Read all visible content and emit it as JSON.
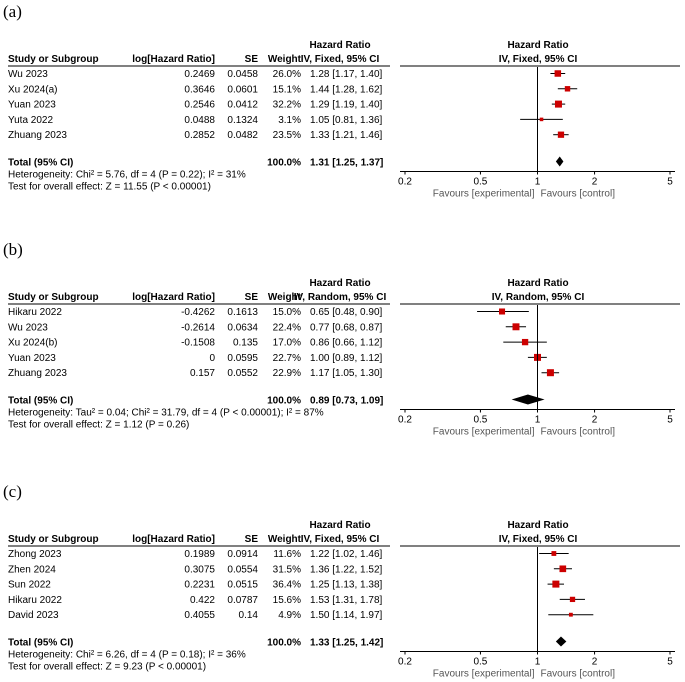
{
  "chart_data": [
    {
      "type": "forest",
      "panel_label": "(a)",
      "headers": {
        "study": "Study or Subgroup",
        "log_hr": "log[Hazard Ratio]",
        "se": "SE",
        "weight": "Weight",
        "hr_top": "Hazard Ratio",
        "hr_method": "IV, Fixed, 95% CI",
        "plot_top": "Hazard Ratio",
        "plot_method": "IV, Fixed, 95% CI"
      },
      "studies": [
        {
          "name": "Wu 2023",
          "log_hr": "0.2469",
          "se": "0.0458",
          "weight": "26.0%",
          "ci_text": "1.28 [1.17, 1.40]",
          "hr": 1.28,
          "lo": 1.17,
          "hi": 1.4,
          "w": 26.0
        },
        {
          "name": "Xu 2024(a)",
          "log_hr": "0.3646",
          "se": "0.0601",
          "weight": "15.1%",
          "ci_text": "1.44 [1.28, 1.62]",
          "hr": 1.44,
          "lo": 1.28,
          "hi": 1.62,
          "w": 15.1
        },
        {
          "name": "Yuan 2023",
          "log_hr": "0.2546",
          "se": "0.0412",
          "weight": "32.2%",
          "ci_text": "1.29 [1.19, 1.40]",
          "hr": 1.29,
          "lo": 1.19,
          "hi": 1.4,
          "w": 32.2
        },
        {
          "name": "Yuta 2022",
          "log_hr": "0.0488",
          "se": "0.1324",
          "weight": "3.1%",
          "ci_text": "1.05 [0.81, 1.36]",
          "hr": 1.05,
          "lo": 0.81,
          "hi": 1.36,
          "w": 3.1
        },
        {
          "name": "Zhuang 2023",
          "log_hr": "0.2852",
          "se": "0.0482",
          "weight": "23.5%",
          "ci_text": "1.33 [1.21, 1.46]",
          "hr": 1.33,
          "lo": 1.21,
          "hi": 1.46,
          "w": 23.5
        }
      ],
      "total": {
        "label": "Total (95% CI)",
        "weight": "100.0%",
        "ci_text": "1.31 [1.25, 1.37]",
        "hr": 1.31,
        "lo": 1.25,
        "hi": 1.37
      },
      "heterogeneity": "Heterogeneity: Chi² = 5.76, df = 4 (P = 0.22); I² = 31%",
      "overall_effect": "Test for overall effect: Z = 11.55 (P < 0.00001)",
      "axis_ticks": [
        0.2,
        0.5,
        1,
        2,
        5
      ],
      "axis_tick_labels": [
        "0.2",
        "0.5",
        "1",
        "2",
        "5"
      ],
      "xlim": [
        0.2,
        5
      ],
      "scale": "log",
      "favours_left": "Favours [experimental]",
      "favours_right": "Favours [control]"
    },
    {
      "type": "forest",
      "panel_label": "(b)",
      "headers": {
        "study": "Study or Subgroup",
        "log_hr": "log[Hazard Ratio]",
        "se": "SE",
        "weight": "Weight",
        "hr_top": "Hazard Ratio",
        "hr_method": "IV, Random, 95% CI",
        "plot_top": "Hazard Ratio",
        "plot_method": "IV, Random, 95% CI"
      },
      "studies": [
        {
          "name": "Hikaru 2022",
          "log_hr": "-0.4262",
          "se": "0.1613",
          "weight": "15.0%",
          "ci_text": "0.65 [0.48, 0.90]",
          "hr": 0.65,
          "lo": 0.48,
          "hi": 0.9,
          "w": 15.0
        },
        {
          "name": "Wu 2023",
          "log_hr": "-0.2614",
          "se": "0.0634",
          "weight": "22.4%",
          "ci_text": "0.77 [0.68, 0.87]",
          "hr": 0.77,
          "lo": 0.68,
          "hi": 0.87,
          "w": 22.4
        },
        {
          "name": "Xu 2024(b)",
          "log_hr": "-0.1508",
          "se": "0.135",
          "weight": "17.0%",
          "ci_text": "0.86 [0.66, 1.12]",
          "hr": 0.86,
          "lo": 0.66,
          "hi": 1.12,
          "w": 17.0
        },
        {
          "name": "Yuan 2023",
          "log_hr": "0",
          "se": "0.0595",
          "weight": "22.7%",
          "ci_text": "1.00 [0.89, 1.12]",
          "hr": 1.0,
          "lo": 0.89,
          "hi": 1.12,
          "w": 22.7
        },
        {
          "name": "Zhuang 2023",
          "log_hr": "0.157",
          "se": "0.0552",
          "weight": "22.9%",
          "ci_text": "1.17 [1.05, 1.30]",
          "hr": 1.17,
          "lo": 1.05,
          "hi": 1.3,
          "w": 22.9
        }
      ],
      "total": {
        "label": "Total (95% CI)",
        "weight": "100.0%",
        "ci_text": "0.89 [0.73, 1.09]",
        "hr": 0.89,
        "lo": 0.73,
        "hi": 1.09
      },
      "heterogeneity": "Heterogeneity: Tau² = 0.04; Chi² = 31.79, df = 4 (P < 0.00001); I² = 87%",
      "overall_effect": "Test for overall effect: Z = 1.12 (P = 0.26)",
      "axis_ticks": [
        0.2,
        0.5,
        1,
        2,
        5
      ],
      "axis_tick_labels": [
        "0.2",
        "0.5",
        "1",
        "2",
        "5"
      ],
      "xlim": [
        0.2,
        5
      ],
      "scale": "log",
      "favours_left": "Favours [experimental]",
      "favours_right": "Favours [control]"
    },
    {
      "type": "forest",
      "panel_label": "(c)",
      "headers": {
        "study": "Study or Subgroup",
        "log_hr": "log[Hazard Ratio]",
        "se": "SE",
        "weight": "Weight",
        "hr_top": "Hazard Ratio",
        "hr_method": "IV, Fixed, 95% CI",
        "plot_top": "Hazard Ratio",
        "plot_method": "IV, Fixed, 95% CI"
      },
      "studies": [
        {
          "name": "Zhong 2023",
          "log_hr": "0.1989",
          "se": "0.0914",
          "weight": "11.6%",
          "ci_text": "1.22 [1.02, 1.46]",
          "hr": 1.22,
          "lo": 1.02,
          "hi": 1.46,
          "w": 11.6
        },
        {
          "name": "Zhen 2024",
          "log_hr": "0.3075",
          "se": "0.0554",
          "weight": "31.5%",
          "ci_text": "1.36 [1.22, 1.52]",
          "hr": 1.36,
          "lo": 1.22,
          "hi": 1.52,
          "w": 31.5
        },
        {
          "name": "Sun 2022",
          "log_hr": "0.2231",
          "se": "0.0515",
          "weight": "36.4%",
          "ci_text": "1.25 [1.13, 1.38]",
          "hr": 1.25,
          "lo": 1.13,
          "hi": 1.38,
          "w": 36.4
        },
        {
          "name": "Hikaru 2022",
          "log_hr": "0.422",
          "se": "0.0787",
          "weight": "15.6%",
          "ci_text": "1.53 [1.31, 1.78]",
          "hr": 1.53,
          "lo": 1.31,
          "hi": 1.78,
          "w": 15.6
        },
        {
          "name": "David 2023",
          "log_hr": "0.4055",
          "se": "0.14",
          "weight": "4.9%",
          "ci_text": "1.50 [1.14, 1.97]",
          "hr": 1.5,
          "lo": 1.14,
          "hi": 1.97,
          "w": 4.9
        }
      ],
      "total": {
        "label": "Total (95% CI)",
        "weight": "100.0%",
        "ci_text": "1.33 [1.25, 1.42]",
        "hr": 1.33,
        "lo": 1.25,
        "hi": 1.42
      },
      "heterogeneity": "Heterogeneity: Chi² = 6.26, df = 4 (P = 0.18); I² = 36%",
      "overall_effect": "Test for overall effect: Z = 9.23 (P < 0.00001)",
      "axis_ticks": [
        0.2,
        0.5,
        1,
        2,
        5
      ],
      "axis_tick_labels": [
        "0.2",
        "0.5",
        "1",
        "2",
        "5"
      ],
      "xlim": [
        0.2,
        5
      ],
      "scale": "log",
      "favours_left": "Favours [experimental]",
      "favours_right": "Favours [control]"
    }
  ],
  "colors": {
    "marker": "#cc0000",
    "line": "#000000",
    "axis_label": "#555555"
  }
}
